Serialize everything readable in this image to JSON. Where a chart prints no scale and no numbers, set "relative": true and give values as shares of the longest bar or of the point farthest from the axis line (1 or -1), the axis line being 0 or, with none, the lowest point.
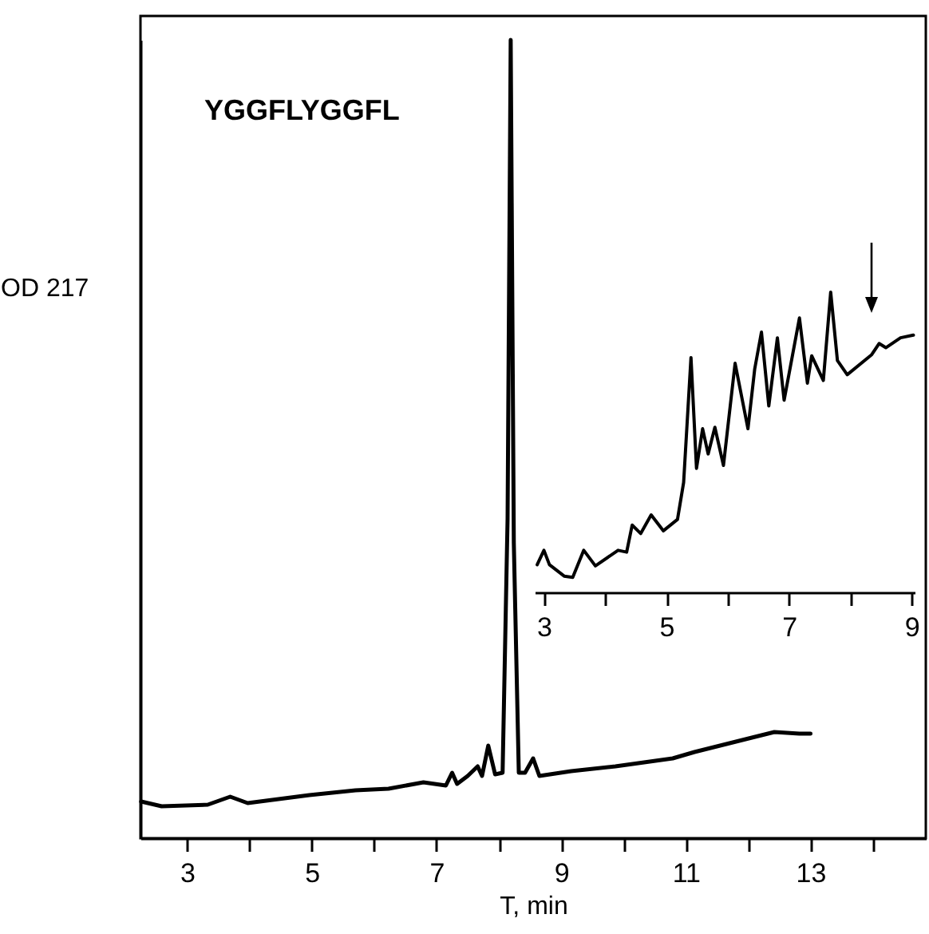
{
  "chart_data": [
    {
      "type": "line",
      "xlabel": "T, min",
      "ylabel": "OD 217",
      "annotations": [
        "YGGFLYGGFL"
      ],
      "relative": true,
      "xlim": [
        2.25,
        14.85
      ],
      "xticks": [
        3,
        {
          "value": 4,
          "label": null
        },
        5,
        {
          "value": 6,
          "label": null
        },
        7,
        {
          "value": 8,
          "label": null
        },
        9,
        {
          "value": 10,
          "label": null
        },
        11,
        {
          "value": 12,
          "label": null
        },
        13,
        {
          "value": 14,
          "label": null
        }
      ],
      "series": [
        {
          "color": "#000000",
          "x": [
            2.26,
            2.59,
            3.33,
            3.69,
            3.97,
            4.96,
            5.7,
            6.23,
            6.79,
            7.15,
            7.25,
            7.33,
            7.5,
            7.66,
            7.73,
            7.83,
            7.94,
            8.06,
            8.14,
            8.19,
            8.24,
            8.32,
            8.42,
            8.55,
            8.65,
            9.16,
            9.87,
            10.79,
            11.14,
            12.06,
            12.42,
            12.82,
            13.0
          ],
          "values": [
            0.046,
            0.04,
            0.042,
            0.052,
            0.044,
            0.054,
            0.06,
            0.062,
            0.07,
            0.066,
            0.082,
            0.068,
            0.078,
            0.09,
            0.078,
            0.116,
            0.08,
            0.082,
            0.4,
            1,
            0.37,
            0.082,
            0.082,
            0.1,
            0.078,
            0.084,
            0.09,
            0.1,
            0.108,
            0.126,
            0.133,
            0.131,
            0.131
          ]
        }
      ]
    },
    {
      "type": "line",
      "relative": true,
      "xlim": [
        2.85,
        9.05
      ],
      "xticks": [
        3,
        {
          "value": 4,
          "label": null
        },
        5,
        {
          "value": 6,
          "label": null
        },
        7,
        {
          "value": 8,
          "label": null
        },
        9
      ],
      "series": [
        {
          "color": "#000000",
          "x": [
            2.89,
            3.0,
            3.09,
            3.33,
            3.47,
            3.65,
            3.84,
            4.21,
            4.35,
            4.44,
            4.58,
            4.75,
            4.95,
            5.18,
            5.28,
            5.4,
            5.49,
            5.59,
            5.68,
            5.79,
            5.93,
            6.12,
            6.33,
            6.44,
            6.55,
            6.67,
            6.81,
            6.92,
            7.17,
            7.3,
            7.37,
            7.56,
            7.68,
            7.79,
            7.95,
            8.35,
            8.47,
            8.58,
            8.82,
            9.03
          ],
          "values": [
            0.092,
            0.14,
            0.092,
            0.054,
            0.05,
            0.14,
            0.088,
            0.14,
            0.134,
            0.224,
            0.196,
            0.258,
            0.205,
            0.243,
            0.366,
            0.782,
            0.413,
            0.545,
            0.461,
            0.55,
            0.423,
            0.763,
            0.545,
            0.744,
            0.867,
            0.621,
            0.848,
            0.64,
            0.914,
            0.697,
            0.788,
            0.706,
            1,
            0.772,
            0.725,
            0.792,
            0.829,
            0.815,
            0.848,
            0.857
          ]
        }
      ]
    }
  ]
}
